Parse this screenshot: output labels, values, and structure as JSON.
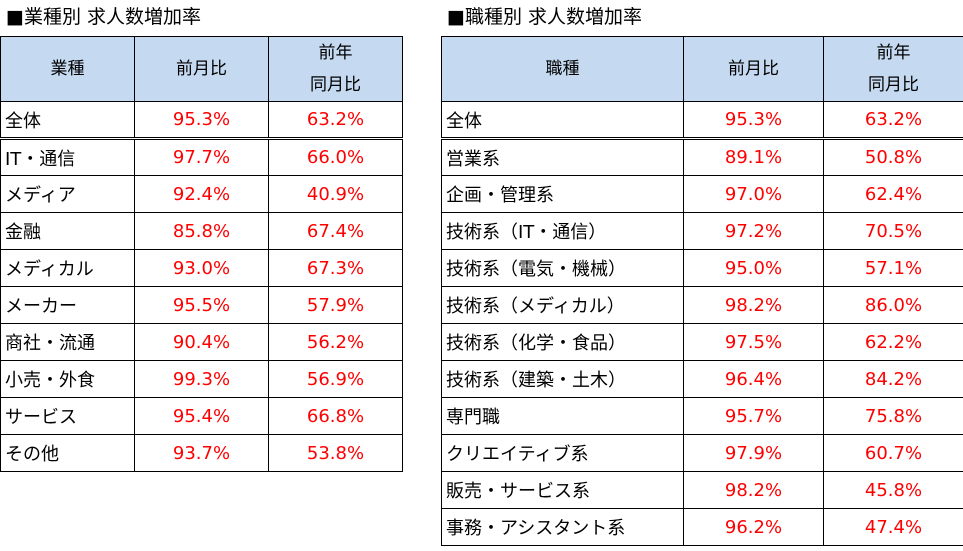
{
  "left": {
    "title": "■業種別 求人数増加率",
    "headers": {
      "category": "業種",
      "mom": "前月比",
      "yoy_line1": "前年",
      "yoy_line2": "同月比"
    },
    "total": {
      "name": "全体",
      "mom": "95.3%",
      "yoy": "63.2%"
    },
    "rows": [
      {
        "name": "IT・通信",
        "mom": "97.7%",
        "yoy": "66.0%"
      },
      {
        "name": "メディア",
        "mom": "92.4%",
        "yoy": "40.9%"
      },
      {
        "name": "金融",
        "mom": "85.8%",
        "yoy": "67.4%"
      },
      {
        "name": "メディカル",
        "mom": "93.0%",
        "yoy": "67.3%"
      },
      {
        "name": "メーカー",
        "mom": "95.5%",
        "yoy": "57.9%"
      },
      {
        "name": "商社・流通",
        "mom": "90.4%",
        "yoy": "56.2%"
      },
      {
        "name": "小売・外食",
        "mom": "99.3%",
        "yoy": "56.9%"
      },
      {
        "name": "サービス",
        "mom": "95.4%",
        "yoy": "66.8%"
      },
      {
        "name": "その他",
        "mom": "93.7%",
        "yoy": "53.8%"
      }
    ]
  },
  "right": {
    "title": "■職種別 求人数増加率",
    "headers": {
      "category": "職種",
      "mom": "前月比",
      "yoy_line1": "前年",
      "yoy_line2": "同月比"
    },
    "total": {
      "name": "全体",
      "mom": "95.3%",
      "yoy": "63.2%"
    },
    "rows": [
      {
        "name": "営業系",
        "mom": "89.1%",
        "yoy": "50.8%"
      },
      {
        "name": "企画・管理系",
        "mom": "97.0%",
        "yoy": "62.4%"
      },
      {
        "name": "技術系（IT・通信）",
        "mom": "97.2%",
        "yoy": "70.5%"
      },
      {
        "name": "技術系（電気・機械）",
        "mom": "95.0%",
        "yoy": "57.1%"
      },
      {
        "name": "技術系（メディカル）",
        "mom": "98.2%",
        "yoy": "86.0%"
      },
      {
        "name": "技術系（化学・食品）",
        "mom": "97.5%",
        "yoy": "62.2%"
      },
      {
        "name": "技術系（建築・土木）",
        "mom": "96.4%",
        "yoy": "84.2%"
      },
      {
        "name": "専門職",
        "mom": "95.7%",
        "yoy": "75.8%"
      },
      {
        "name": "クリエイティブ系",
        "mom": "97.9%",
        "yoy": "60.7%"
      },
      {
        "name": "販売・サービス系",
        "mom": "98.2%",
        "yoy": "45.8%"
      },
      {
        "name": "事務・アシスタント系",
        "mom": "96.2%",
        "yoy": "47.4%"
      }
    ]
  },
  "colors": {
    "header_bg": "#c5d9f1",
    "value_text": "#ff0000",
    "border": "#000000"
  }
}
